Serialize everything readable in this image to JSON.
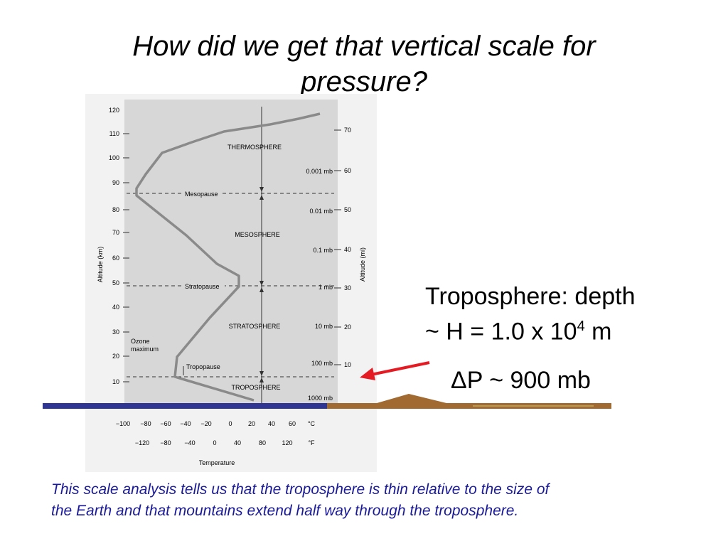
{
  "slide": {
    "title_line1": "How did we get that vertical scale for",
    "title_line2": "pressure?",
    "troposphere_line1": "Troposphere: depth",
    "troposphere_line2_prefix": "~ H = 1.0 x 10",
    "troposphere_exponent": "4",
    "troposphere_line2_suffix": " m",
    "delta_p": "ΔP ~ 900 mb",
    "caption_line1": "This scale analysis tells us that the troposphere is thin relative to the size of",
    "caption_line2": "the Earth and that mountains extend half way through the troposphere.",
    "caption_color": "#1a1a99"
  },
  "figure": {
    "left_axis_label": "Altitude (km)",
    "right_axis_label": "Altitude (mi)",
    "km_ticks": [
      "120",
      "110",
      "100",
      "90",
      "80",
      "70",
      "60",
      "50",
      "40",
      "30",
      "20",
      "10"
    ],
    "mi_ticks": [
      "70",
      "60",
      "50",
      "40",
      "30",
      "20",
      "10"
    ],
    "pressure_labels": [
      "0.001 mb",
      "0.01 mb",
      "0.1 mb",
      "1 mb",
      "10 mb",
      "100 mb",
      "1000 mb"
    ],
    "layers": [
      "THERMOSPHERE",
      "MESOSPHERE",
      "STRATOSPHERE",
      "TROPOSPHERE"
    ],
    "pauses": [
      "Mesopause",
      "Stratopause",
      "Tropopause"
    ],
    "ozone_line1": "Ozone",
    "ozone_line2": "maximum",
    "celsius_ticks": [
      "−100",
      "−80",
      "−60",
      "−40",
      "−20",
      "0",
      "20",
      "40",
      "60",
      "°C"
    ],
    "fahrenheit_ticks": [
      "−120",
      "−80",
      "−40",
      "0",
      "40",
      "80",
      "120",
      "°F"
    ],
    "temperature_label": "Temperature"
  },
  "colors": {
    "ground_ocean": "#2e3592",
    "ground_land": "#a06a30",
    "arrow": "#e51b24",
    "profile": "#8a8a8a"
  }
}
